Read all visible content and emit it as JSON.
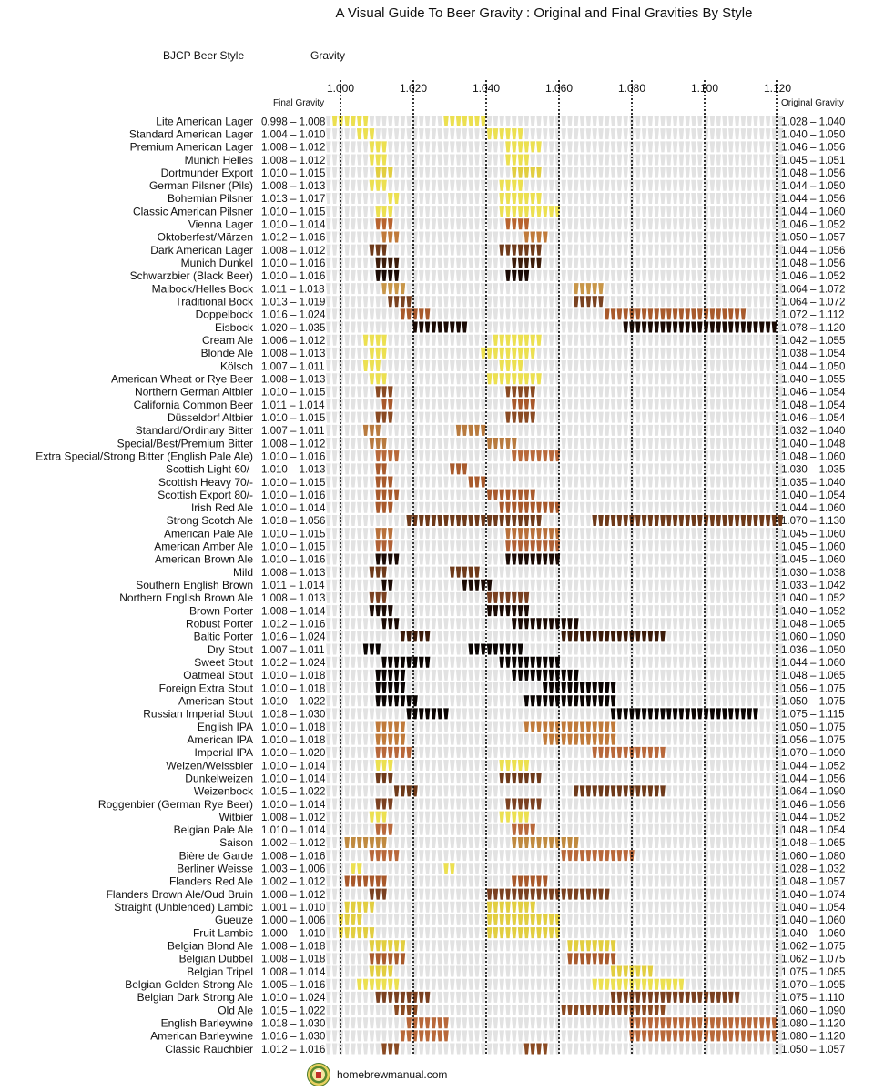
{
  "title": "A Visual Guide To Beer Gravity : Original and Final Gravities By Style",
  "headers": {
    "style": "BJCP Beer Style",
    "gravity": "Gravity",
    "final": "Final Gravity",
    "original": "Original Gravity"
  },
  "footer": {
    "site": "homebrewmanual.com"
  },
  "colors": {
    "empty": "#e2e2e2",
    "grid": "#000000"
  },
  "chart_data": {
    "type": "range-bar",
    "x_ticks": [
      "1.000",
      "1.020",
      "1.040",
      "1.060",
      "1.080",
      "1.100",
      "1.120"
    ],
    "xlim": [
      0.996,
      1.123
    ],
    "gridlines": [
      1.0,
      1.02,
      1.04,
      1.06,
      1.08,
      1.1,
      1.12
    ],
    "series": [
      "Final Gravity",
      "Original Gravity"
    ],
    "rows": [
      {
        "style": "Lite American Lager",
        "fg": "0.998 – 1.008",
        "og": "1.028 – 1.040",
        "color": "#ece050"
      },
      {
        "style": "Standard American Lager",
        "fg": "1.004 – 1.010",
        "og": "1.040 – 1.050",
        "color": "#ece050"
      },
      {
        "style": "Premium American Lager",
        "fg": "1.008 – 1.012",
        "og": "1.046 – 1.056",
        "color": "#ece050"
      },
      {
        "style": "Munich Helles",
        "fg": "1.008 – 1.012",
        "og": "1.045 – 1.051",
        "color": "#ece050"
      },
      {
        "style": "Dortmunder Export",
        "fg": "1.010 – 1.015",
        "og": "1.048 – 1.056",
        "color": "#e2ce40"
      },
      {
        "style": "German Pilsner (Pils)",
        "fg": "1.008 – 1.013",
        "og": "1.044 – 1.050",
        "color": "#ece050"
      },
      {
        "style": "Bohemian Pilsner",
        "fg": "1.013 – 1.017",
        "og": "1.044 – 1.056",
        "color": "#ece050"
      },
      {
        "style": "Classic American Pilsner",
        "fg": "1.010 – 1.015",
        "og": "1.044 – 1.060",
        "color": "#ece050"
      },
      {
        "style": "Vienna Lager",
        "fg": "1.010 – 1.014",
        "og": "1.046 – 1.052",
        "color": "#b8632e"
      },
      {
        "style": "Oktoberfest/Märzen",
        "fg": "1.012 – 1.016",
        "og": "1.050 – 1.057",
        "color": "#c07a3a"
      },
      {
        "style": "Dark American Lager",
        "fg": "1.008 – 1.012",
        "og": "1.044 – 1.056",
        "color": "#6e3a1a"
      },
      {
        "style": "Munich Dunkel",
        "fg": "1.010 – 1.016",
        "og": "1.048 – 1.056",
        "color": "#3c1c0a"
      },
      {
        "style": "Schwarzbier (Black Beer)",
        "fg": "1.010 – 1.016",
        "og": "1.046 – 1.052",
        "color": "#1a0a04"
      },
      {
        "style": "Maibock/Helles Bock",
        "fg": "1.011 – 1.018",
        "og": "1.064 – 1.072",
        "color": "#c89648"
      },
      {
        "style": "Traditional Bock",
        "fg": "1.013 – 1.019",
        "og": "1.064 – 1.072",
        "color": "#7a4220"
      },
      {
        "style": "Doppelbock",
        "fg": "1.016 – 1.024",
        "og": "1.072 – 1.112",
        "color": "#a85a2c"
      },
      {
        "style": "Eisbock",
        "fg": "1.020 – 1.035",
        "og": "1.078 – 1.120",
        "color": "#1a0a04"
      },
      {
        "style": "Cream Ale",
        "fg": "1.006 – 1.012",
        "og": "1.042 – 1.055",
        "color": "#ece050"
      },
      {
        "style": "Blonde Ale",
        "fg": "1.008 – 1.013",
        "og": "1.038 – 1.054",
        "color": "#ece050"
      },
      {
        "style": "Kölsch",
        "fg": "1.007 – 1.011",
        "og": "1.044 – 1.050",
        "color": "#ece050"
      },
      {
        "style": "American Wheat or Rye Beer",
        "fg": "1.008 – 1.013",
        "og": "1.040 – 1.055",
        "color": "#ece050"
      },
      {
        "style": "Northern German Altbier",
        "fg": "1.010 – 1.015",
        "og": "1.046 – 1.054",
        "color": "#8a4a22"
      },
      {
        "style": "California Common Beer",
        "fg": "1.011 – 1.014",
        "og": "1.048 – 1.054",
        "color": "#a8582a"
      },
      {
        "style": "Düsseldorf Altbier",
        "fg": "1.010 – 1.015",
        "og": "1.046 – 1.054",
        "color": "#8a4a22"
      },
      {
        "style": "Standard/Ordinary Bitter",
        "fg": "1.007 – 1.011",
        "og": "1.032 – 1.040",
        "color": "#b87a3e"
      },
      {
        "style": "Special/Best/Premium Bitter",
        "fg": "1.008 – 1.012",
        "og": "1.040 – 1.048",
        "color": "#b87a3e"
      },
      {
        "style": "Extra Special/Strong Bitter (English Pale Ale)",
        "fg": "1.010 – 1.016",
        "og": "1.048 – 1.060",
        "color": "#b8683a"
      },
      {
        "style": "Scottish Light 60/-",
        "fg": "1.010 – 1.013",
        "og": "1.030 – 1.035",
        "color": "#a85a2c"
      },
      {
        "style": "Scottish Heavy 70/-",
        "fg": "1.010 – 1.015",
        "og": "1.035 – 1.040",
        "color": "#a85a2c"
      },
      {
        "style": "Scottish Export 80/-",
        "fg": "1.010 – 1.016",
        "og": "1.040 – 1.054",
        "color": "#a85a2c"
      },
      {
        "style": "Irish Red Ale",
        "fg": "1.010 – 1.014",
        "og": "1.044 – 1.060",
        "color": "#a8582a"
      },
      {
        "style": "Strong Scotch Ale",
        "fg": "1.018 – 1.056",
        "og": "1.070 – 1.130",
        "color": "#6e3a1a"
      },
      {
        "style": "American Pale Ale",
        "fg": "1.010 – 1.015",
        "og": "1.045 – 1.060",
        "color": "#b8703a"
      },
      {
        "style": "American Amber Ale",
        "fg": "1.010 – 1.015",
        "og": "1.045 – 1.060",
        "color": "#b06034"
      },
      {
        "style": "American Brown Ale",
        "fg": "1.010 – 1.016",
        "og": "1.045 – 1.060",
        "color": "#1a0a04"
      },
      {
        "style": "Mild",
        "fg": "1.008 – 1.013",
        "og": "1.030 – 1.038",
        "color": "#6e3a1a"
      },
      {
        "style": "Southern English Brown",
        "fg": "1.011 – 1.014",
        "og": "1.033 – 1.042",
        "color": "#1a0a04"
      },
      {
        "style": "Northern English Brown Ale",
        "fg": "1.008 – 1.013",
        "og": "1.040 – 1.052",
        "color": "#7a4020"
      },
      {
        "style": "Brown Porter",
        "fg": "1.008 – 1.014",
        "og": "1.040 – 1.052",
        "color": "#1a0a04"
      },
      {
        "style": "Robust Porter",
        "fg": "1.012 – 1.016",
        "og": "1.048 – 1.065",
        "color": "#1a0a04"
      },
      {
        "style": "Baltic Porter",
        "fg": "1.016 – 1.024",
        "og": "1.060 – 1.090",
        "color": "#3c1c0a"
      },
      {
        "style": "Dry Stout",
        "fg": "1.007 – 1.011",
        "og": "1.036 – 1.050",
        "color": "#0a0402"
      },
      {
        "style": "Sweet Stout",
        "fg": "1.012 – 1.024",
        "og": "1.044 – 1.060",
        "color": "#0a0402"
      },
      {
        "style": "Oatmeal Stout",
        "fg": "1.010 – 1.018",
        "og": "1.048 – 1.065",
        "color": "#0a0402"
      },
      {
        "style": "Foreign Extra Stout",
        "fg": "1.010 – 1.018",
        "og": "1.056 – 1.075",
        "color": "#0a0402"
      },
      {
        "style": "American Stout",
        "fg": "1.010 – 1.022",
        "og": "1.050 – 1.075",
        "color": "#0a0402"
      },
      {
        "style": "Russian Imperial Stout",
        "fg": "1.018 – 1.030",
        "og": "1.075 – 1.115",
        "color": "#0a0402"
      },
      {
        "style": "English IPA",
        "fg": "1.010 – 1.018",
        "og": "1.050 – 1.075",
        "color": "#c07a3a"
      },
      {
        "style": "American IPA",
        "fg": "1.010 – 1.018",
        "og": "1.056 – 1.075",
        "color": "#c07a3a"
      },
      {
        "style": "Imperial IPA",
        "fg": "1.010 – 1.020",
        "og": "1.070 – 1.090",
        "color": "#b8683a"
      },
      {
        "style": "Weizen/Weissbier",
        "fg": "1.010 – 1.014",
        "og": "1.044 – 1.052",
        "color": "#ece050"
      },
      {
        "style": "Dunkelweizen",
        "fg": "1.010 – 1.014",
        "og": "1.044 – 1.056",
        "color": "#6e3a1a"
      },
      {
        "style": "Weizenbock",
        "fg": "1.015 – 1.022",
        "og": "1.064 – 1.090",
        "color": "#6e3a1a"
      },
      {
        "style": "Roggenbier (German Rye Beer)",
        "fg": "1.010 – 1.014",
        "og": "1.046 – 1.056",
        "color": "#7a4020"
      },
      {
        "style": "Witbier",
        "fg": "1.008 – 1.012",
        "og": "1.044 – 1.052",
        "color": "#ece050"
      },
      {
        "style": "Belgian Pale Ale",
        "fg": "1.010 – 1.014",
        "og": "1.048 – 1.054",
        "color": "#b8683a"
      },
      {
        "style": "Saison",
        "fg": "1.002 – 1.012",
        "og": "1.048 – 1.065",
        "color": "#c08a40"
      },
      {
        "style": "Bière de Garde",
        "fg": "1.008 – 1.016",
        "og": "1.060 – 1.080",
        "color": "#b8683a"
      },
      {
        "style": "Berliner Weisse",
        "fg": "1.003 – 1.006",
        "og": "1.028 – 1.032",
        "color": "#ece050"
      },
      {
        "style": "Flanders Red Ale",
        "fg": "1.002 – 1.012",
        "og": "1.048 – 1.057",
        "color": "#a8582a"
      },
      {
        "style": "Flanders Brown Ale/Oud Bruin",
        "fg": "1.008 – 1.012",
        "og": "1.040 – 1.074",
        "color": "#7a4020"
      },
      {
        "style": "Straight (Unblended) Lambic",
        "fg": "1.001 – 1.010",
        "og": "1.040 – 1.054",
        "color": "#e2ce40"
      },
      {
        "style": "Gueuze",
        "fg": "1.000 – 1.006",
        "og": "1.040 – 1.060",
        "color": "#e2ce40"
      },
      {
        "style": "Fruit Lambic",
        "fg": "1.000 – 1.010",
        "og": "1.040 – 1.060",
        "color": "#e2ce40"
      },
      {
        "style": "Belgian Blond Ale",
        "fg": "1.008 – 1.018",
        "og": "1.062 – 1.075",
        "color": "#e2ce40"
      },
      {
        "style": "Belgian Dubbel",
        "fg": "1.008 – 1.018",
        "og": "1.062 – 1.075",
        "color": "#a85a2c"
      },
      {
        "style": "Belgian Tripel",
        "fg": "1.008 – 1.014",
        "og": "1.075 – 1.085",
        "color": "#e2ce40"
      },
      {
        "style": "Belgian Golden Strong Ale",
        "fg": "1.005 – 1.016",
        "og": "1.070 – 1.095",
        "color": "#ece050"
      },
      {
        "style": "Belgian Dark Strong Ale",
        "fg": "1.010 – 1.024",
        "og": "1.075 – 1.110",
        "color": "#7a4020"
      },
      {
        "style": "Old Ale",
        "fg": "1.015 – 1.022",
        "og": "1.060 – 1.090",
        "color": "#8a4a22"
      },
      {
        "style": "English Barleywine",
        "fg": "1.018 – 1.030",
        "og": "1.080 – 1.120",
        "color": "#b8683a"
      },
      {
        "style": "American Barleywine",
        "fg": "1.016 – 1.030",
        "og": "1.080 – 1.120",
        "color": "#b8683a"
      },
      {
        "style": "Classic Rauchbier",
        "fg": "1.012 – 1.016",
        "og": "1.050 – 1.057",
        "color": "#8a4a22"
      }
    ]
  }
}
